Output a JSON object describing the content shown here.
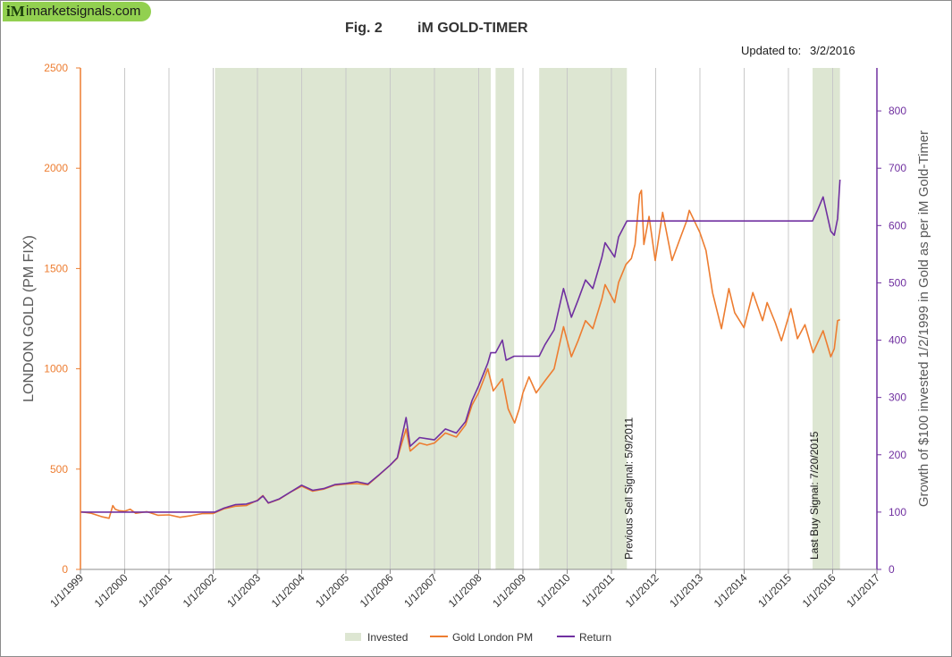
{
  "header": {
    "logo_mark": "iM",
    "logo_text": "imarketsignals.com",
    "fig_label": "Fig. 2",
    "title": "iM GOLD-TIMER",
    "updated_label": "Updated to:",
    "updated_date": "3/2/2016"
  },
  "colors": {
    "gold": "#ed7d31",
    "return": "#7030a0",
    "invested": "#dde6d2",
    "left_axis": "#ed7d31",
    "right_axis": "#7030a0"
  },
  "chart_data": {
    "type": "line",
    "title": "iM GOLD-TIMER",
    "ylabel": "LONDON GOLD (PM FIX)",
    "y2label": "Growth of $100 invested 1/2/1999 in Gold as per iM Gold-Timer",
    "ylim": [
      0,
      2500
    ],
    "y2lim": [
      0,
      875
    ],
    "xlim": [
      "1999-01-01",
      "2017-01-01"
    ],
    "yticks": [
      0,
      500,
      1000,
      1500,
      2000,
      2500
    ],
    "y2ticks": [
      0,
      100,
      200,
      300,
      400,
      500,
      600,
      700,
      800
    ],
    "xticks": [
      "1/1/1999",
      "1/1/2000",
      "1/1/2001",
      "1/1/2002",
      "1/1/2003",
      "1/1/2004",
      "1/1/2005",
      "1/1/2006",
      "1/1/2007",
      "1/1/2008",
      "1/1/2009",
      "1/1/2010",
      "1/1/2011",
      "1/1/2012",
      "1/1/2013",
      "1/1/2014",
      "1/1/2015",
      "1/1/2016",
      "1/1/2017"
    ],
    "grid": "vertical",
    "legend_position": "bottom",
    "legend": [
      "Invested",
      "Gold London PM",
      "Return"
    ],
    "invested_periods": [
      [
        "2002-01-15",
        "2008-04-10"
      ],
      [
        "2008-05-20",
        "2008-10-20"
      ],
      [
        "2009-05-15",
        "2011-05-09"
      ],
      [
        "2015-07-20",
        "2016-03-02"
      ]
    ],
    "annotations": [
      {
        "text": "Previous Sell Signal:  5/9/2011",
        "x": "2011-05-09"
      },
      {
        "text": "Last Buy Signal:  7/20/2015",
        "x": "2015-07-20"
      }
    ],
    "series": [
      {
        "name": "Gold London PM",
        "axis": "left",
        "x": [
          "1999-01-01",
          "1999-04-01",
          "1999-07-01",
          "1999-08-25",
          "1999-09-25",
          "1999-10-15",
          "1999-11-15",
          "2000-01-01",
          "2000-02-15",
          "2000-04-01",
          "2000-07-01",
          "2000-10-01",
          "2001-01-01",
          "2001-04-01",
          "2001-07-01",
          "2001-10-01",
          "2002-01-01",
          "2002-04-01",
          "2002-07-01",
          "2002-10-01",
          "2003-01-01",
          "2003-02-15",
          "2003-04-01",
          "2003-07-01",
          "2003-10-01",
          "2004-01-01",
          "2004-04-01",
          "2004-07-01",
          "2004-10-01",
          "2005-01-01",
          "2005-04-01",
          "2005-07-01",
          "2005-10-01",
          "2006-01-01",
          "2006-03-01",
          "2006-05-12",
          "2006-06-15",
          "2006-09-01",
          "2006-11-01",
          "2007-01-01",
          "2007-04-01",
          "2007-07-01",
          "2007-09-15",
          "2007-11-08",
          "2008-01-01",
          "2008-03-17",
          "2008-05-01",
          "2008-07-15",
          "2008-09-01",
          "2008-10-24",
          "2008-12-01",
          "2009-01-01",
          "2009-02-20",
          "2009-04-20",
          "2009-07-01",
          "2009-09-15",
          "2009-12-02",
          "2010-02-05",
          "2010-04-01",
          "2010-06-01",
          "2010-08-01",
          "2010-10-15",
          "2010-11-10",
          "2011-01-28",
          "2011-03-01",
          "2011-05-01",
          "2011-06-15",
          "2011-07-15",
          "2011-08-22",
          "2011-09-06",
          "2011-09-26",
          "2011-11-08",
          "2011-12-29",
          "2012-02-28",
          "2012-05-16",
          "2012-07-15",
          "2012-09-15",
          "2012-10-05",
          "2012-12-31",
          "2013-02-20",
          "2013-04-15",
          "2013-06-28",
          "2013-08-28",
          "2013-10-15",
          "2013-12-31",
          "2014-03-14",
          "2014-06-02",
          "2014-07-10",
          "2014-09-15",
          "2014-11-05",
          "2015-01-22",
          "2015-03-17",
          "2015-05-18",
          "2015-07-24",
          "2015-10-15",
          "2015-12-17",
          "2016-01-15",
          "2016-02-11",
          "2016-03-02"
        ],
        "values": [
          288,
          280,
          262,
          255,
          318,
          300,
          293,
          290,
          300,
          280,
          288,
          270,
          272,
          260,
          268,
          278,
          279,
          302,
          315,
          318,
          345,
          368,
          330,
          350,
          385,
          415,
          390,
          400,
          420,
          425,
          428,
          422,
          470,
          520,
          555,
          700,
          590,
          630,
          620,
          630,
          680,
          660,
          720,
          820,
          880,
          1000,
          890,
          950,
          800,
          730,
          800,
          880,
          960,
          880,
          940,
          1000,
          1210,
          1060,
          1140,
          1240,
          1200,
          1350,
          1420,
          1330,
          1430,
          1520,
          1550,
          1620,
          1870,
          1890,
          1620,
          1760,
          1540,
          1780,
          1540,
          1640,
          1740,
          1790,
          1680,
          1590,
          1380,
          1200,
          1400,
          1280,
          1205,
          1380,
          1240,
          1330,
          1230,
          1140,
          1300,
          1150,
          1220,
          1080,
          1190,
          1060,
          1100,
          1240,
          1245
        ]
      },
      {
        "name": "Return",
        "axis": "right",
        "x": [
          "1999-01-01",
          "2002-01-15",
          "2002-04-01",
          "2002-07-01",
          "2002-10-01",
          "2003-01-01",
          "2003-02-15",
          "2003-04-01",
          "2003-07-01",
          "2003-10-01",
          "2004-01-01",
          "2004-04-01",
          "2004-07-01",
          "2004-10-01",
          "2005-01-01",
          "2005-04-01",
          "2005-07-01",
          "2005-10-01",
          "2006-01-01",
          "2006-03-01",
          "2006-05-12",
          "2006-06-15",
          "2006-09-01",
          "2006-11-01",
          "2007-01-01",
          "2007-04-01",
          "2007-07-01",
          "2007-09-15",
          "2007-11-08",
          "2008-01-01",
          "2008-03-17",
          "2008-04-10",
          "2008-05-20",
          "2008-07-15",
          "2008-08-15",
          "2008-10-20",
          "2009-05-15",
          "2009-07-01",
          "2009-09-15",
          "2009-12-02",
          "2010-02-05",
          "2010-04-01",
          "2010-06-01",
          "2010-08-01",
          "2010-10-15",
          "2010-11-10",
          "2011-01-28",
          "2011-03-01",
          "2011-05-09",
          "2015-07-20",
          "2015-09-01",
          "2015-10-15",
          "2015-12-17",
          "2016-01-15",
          "2016-02-11",
          "2016-03-02"
        ],
        "values": [
          100,
          100,
          107,
          113,
          114,
          120,
          128,
          116,
          123,
          135,
          147,
          138,
          141,
          148,
          150,
          153,
          149,
          165,
          182,
          195,
          265,
          215,
          230,
          228,
          226,
          245,
          238,
          258,
          295,
          320,
          360,
          378,
          378,
          400,
          365,
          372,
          372,
          392,
          418,
          490,
          440,
          470,
          505,
          490,
          545,
          570,
          545,
          580,
          608,
          608,
          628,
          650,
          590,
          583,
          612,
          680
        ]
      }
    ]
  }
}
